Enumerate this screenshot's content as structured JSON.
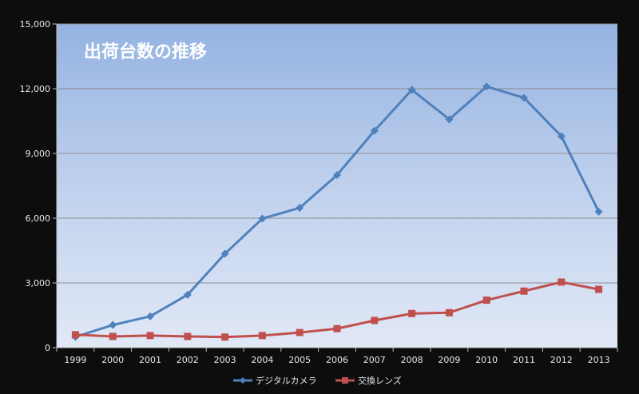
{
  "chart_data": {
    "type": "line",
    "title": "出荷台数の推移",
    "xlabel": "",
    "ylabel": "",
    "categories": [
      "1999",
      "2000",
      "2001",
      "2002",
      "2003",
      "2004",
      "2005",
      "2006",
      "2007",
      "2008",
      "2009",
      "2010",
      "2011",
      "2012",
      "2013"
    ],
    "ylim": [
      0,
      15000
    ],
    "yticks": [
      "0",
      "3,000",
      "6,000",
      "9,000",
      "12,000",
      "15,000"
    ],
    "ytick_values": [
      0,
      3000,
      6000,
      9000,
      12000,
      15000
    ],
    "grid": true,
    "legend_position": "bottom",
    "series": [
      {
        "name": "デジタルカメラ",
        "color": "#4f81bd",
        "marker": "diamond",
        "values": [
          500,
          1050,
          1450,
          2450,
          4350,
          5980,
          6480,
          8000,
          10050,
          11950,
          10580,
          12100,
          11580,
          9800,
          6300
        ]
      },
      {
        "name": "交換レンズ",
        "color": "#c0504d",
        "marker": "square",
        "values": [
          600,
          520,
          560,
          520,
          490,
          560,
          700,
          880,
          1260,
          1580,
          1620,
          2200,
          2620,
          3040,
          2700
        ]
      }
    ]
  }
}
